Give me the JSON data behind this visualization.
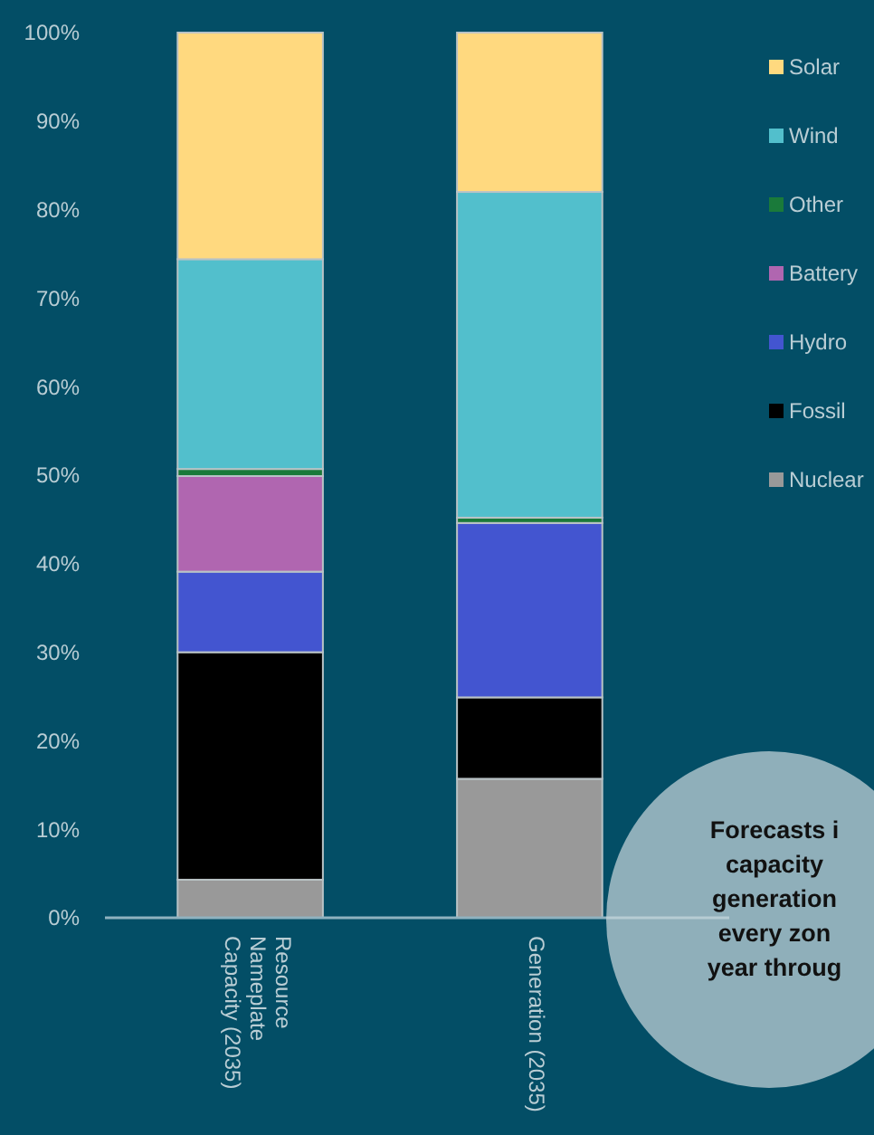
{
  "chart_data": {
    "type": "bar",
    "stacked": true,
    "categories": [
      "Resource\nNameplate\nCapacity (2035)",
      "Generation (2035)"
    ],
    "series": [
      {
        "name": "Nuclear",
        "color": "#999999",
        "values": [
          4.3,
          15.7
        ]
      },
      {
        "name": "Fossil",
        "color": "#000000",
        "values": [
          25.7,
          9.2
        ]
      },
      {
        "name": "Hydro",
        "color": "#4355d0",
        "values": [
          9.1,
          19.7
        ]
      },
      {
        "name": "Battery",
        "color": "#b066b0",
        "values": [
          10.8,
          0
        ]
      },
      {
        "name": "Other",
        "color": "#1a7a3a",
        "values": [
          0.8,
          0.6
        ]
      },
      {
        "name": "Wind",
        "color": "#52bfcc",
        "values": [
          23.7,
          36.8
        ]
      },
      {
        "name": "Solar",
        "color": "#ffd97f",
        "values": [
          25.6,
          18.0
        ]
      }
    ],
    "ylim": [
      0,
      100
    ],
    "yticks": [
      {
        "value": 0,
        "label": "0%"
      },
      {
        "value": 10,
        "label": "10%"
      },
      {
        "value": 20,
        "label": "20%"
      },
      {
        "value": 30,
        "label": "30%"
      },
      {
        "value": 40,
        "label": "40%"
      },
      {
        "value": 50,
        "label": "50%"
      },
      {
        "value": 60,
        "label": "60%"
      },
      {
        "value": 70,
        "label": "70%"
      },
      {
        "value": 80,
        "label": "80%"
      },
      {
        "value": 90,
        "label": "90%"
      },
      {
        "value": 100,
        "label": "100%"
      }
    ],
    "legend": "right",
    "annotations": [
      "Forecasts i\ncapacity\ngeneration\nevery zon\nyear throug"
    ]
  }
}
